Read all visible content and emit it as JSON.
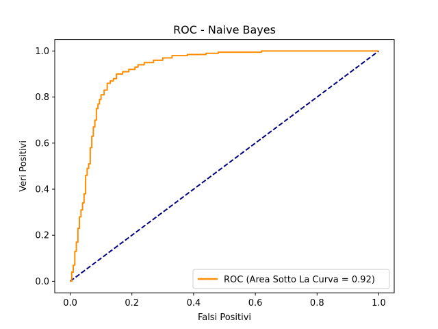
{
  "chart_data": {
    "type": "line",
    "title": "ROC - Naive Bayes",
    "xlabel": "Falsi Positivi",
    "ylabel": "Veri Positivi",
    "xlim": [
      -0.05,
      1.05
    ],
    "ylim": [
      -0.05,
      1.05
    ],
    "xticks": [
      "0.0",
      "0.2",
      "0.4",
      "0.6",
      "0.8",
      "1.0"
    ],
    "yticks": [
      "0.0",
      "0.2",
      "0.4",
      "0.6",
      "0.8",
      "1.0"
    ],
    "xtick_values": [
      0,
      0.2,
      0.4,
      0.6,
      0.8,
      1.0
    ],
    "ytick_values": [
      0,
      0.2,
      0.4,
      0.6,
      0.8,
      1.0
    ],
    "grid": false,
    "legend_position": "lower-right",
    "series": [
      {
        "name": "ROC (Area Sotto La Curva = 0.92)",
        "color": "#ff8c00",
        "style": "solid",
        "x": [
          0.0,
          0.005,
          0.005,
          0.01,
          0.01,
          0.015,
          0.015,
          0.02,
          0.02,
          0.025,
          0.025,
          0.03,
          0.03,
          0.035,
          0.035,
          0.04,
          0.04,
          0.045,
          0.045,
          0.05,
          0.05,
          0.055,
          0.055,
          0.06,
          0.06,
          0.065,
          0.065,
          0.07,
          0.07,
          0.075,
          0.075,
          0.08,
          0.08,
          0.085,
          0.085,
          0.09,
          0.09,
          0.095,
          0.095,
          0.1,
          0.1,
          0.11,
          0.11,
          0.12,
          0.12,
          0.13,
          0.13,
          0.14,
          0.14,
          0.15,
          0.15,
          0.17,
          0.17,
          0.19,
          0.19,
          0.21,
          0.21,
          0.22,
          0.22,
          0.24,
          0.24,
          0.27,
          0.27,
          0.3,
          0.3,
          0.33,
          0.33,
          0.38,
          0.38,
          0.44,
          0.44,
          0.48,
          0.48,
          0.62,
          0.62,
          1.0
        ],
        "y": [
          0.0,
          0.0,
          0.04,
          0.04,
          0.07,
          0.07,
          0.13,
          0.13,
          0.17,
          0.17,
          0.23,
          0.23,
          0.28,
          0.28,
          0.31,
          0.31,
          0.34,
          0.34,
          0.38,
          0.38,
          0.46,
          0.46,
          0.49,
          0.49,
          0.51,
          0.51,
          0.58,
          0.58,
          0.63,
          0.63,
          0.67,
          0.67,
          0.7,
          0.7,
          0.75,
          0.75,
          0.77,
          0.77,
          0.79,
          0.79,
          0.81,
          0.81,
          0.83,
          0.83,
          0.86,
          0.86,
          0.87,
          0.87,
          0.88,
          0.88,
          0.9,
          0.9,
          0.91,
          0.91,
          0.92,
          0.92,
          0.93,
          0.93,
          0.94,
          0.94,
          0.95,
          0.95,
          0.96,
          0.96,
          0.97,
          0.97,
          0.98,
          0.98,
          0.985,
          0.985,
          0.99,
          0.99,
          0.995,
          0.995,
          1.0,
          1.0
        ]
      },
      {
        "name": "",
        "color": "#000080",
        "style": "dashed",
        "x": [
          0.0,
          1.0
        ],
        "y": [
          0.0,
          1.0
        ]
      }
    ]
  }
}
